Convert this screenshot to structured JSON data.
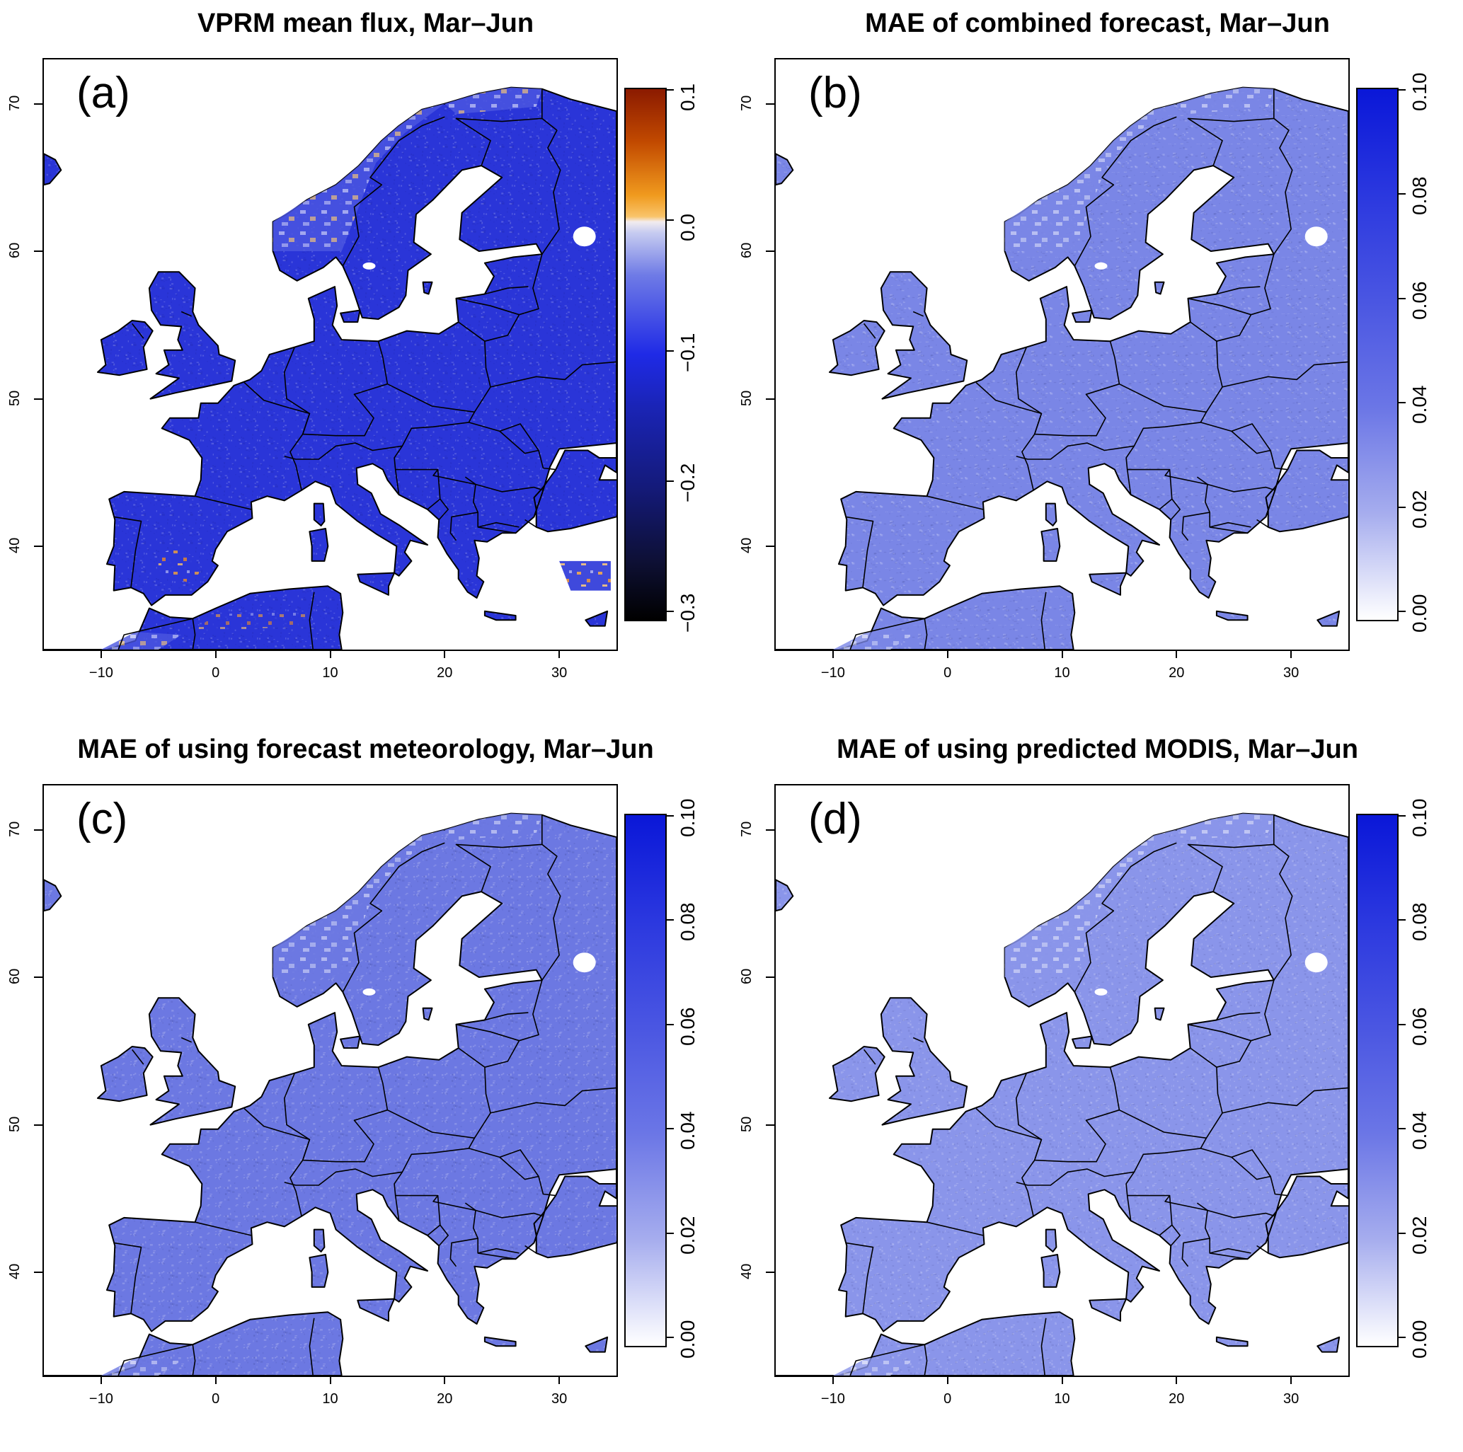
{
  "panels": [
    {
      "title": "VPRM mean flux, Mar–Jun",
      "label": "(a)",
      "scale": "diverging",
      "colorbar_ticks": [
        "0.1",
        "0.0",
        "−0.1",
        "−0.2",
        "−0.3"
      ],
      "colorbar_range": [
        -0.3,
        0.1
      ]
    },
    {
      "title": "MAE of combined forecast, Mar–Jun",
      "label": "(b)",
      "scale": "sequential",
      "colorbar_ticks": [
        "0.10",
        "0.08",
        "0.06",
        "0.04",
        "0.02",
        "0.00"
      ],
      "colorbar_range": [
        0,
        0.1
      ]
    },
    {
      "title": "MAE of using forecast meteorology, Mar–Jun",
      "label": "(c)",
      "scale": "sequential",
      "colorbar_ticks": [
        "0.10",
        "0.08",
        "0.06",
        "0.04",
        "0.02",
        "0.00"
      ],
      "colorbar_range": [
        0,
        0.1
      ]
    },
    {
      "title": "MAE of using predicted MODIS, Mar–Jun",
      "label": "(d)",
      "scale": "sequential",
      "colorbar_ticks": [
        "0.10",
        "0.08",
        "0.06",
        "0.04",
        "0.02",
        "0.00"
      ],
      "colorbar_range": [
        0,
        0.1
      ]
    }
  ],
  "x_ticks": [
    "−10",
    "0",
    "10",
    "20",
    "30"
  ],
  "y_ticks": [
    "40",
    "50",
    "60",
    "70"
  ],
  "lon_range": [
    -15,
    35
  ],
  "lat_range": [
    33,
    73
  ],
  "colors": {
    "land_a": "#2a35d8",
    "land_b": "#7a86e6",
    "land_c": "#6c78e2",
    "land_d": "#8a95ea",
    "border": "#000000"
  }
}
